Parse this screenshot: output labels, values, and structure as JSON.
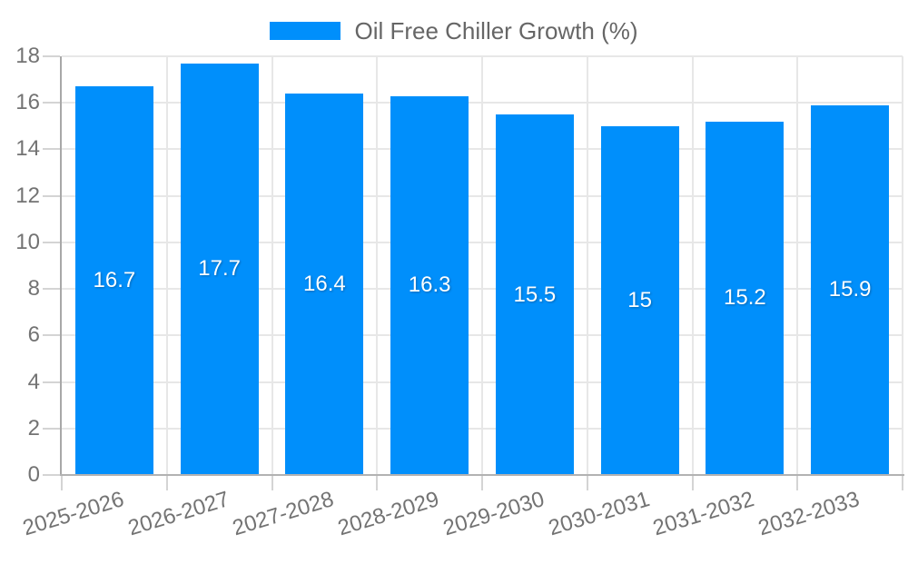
{
  "legend": {
    "label": "Oil Free Chiller Growth (%)"
  },
  "chart_data": {
    "type": "bar",
    "title": "Oil Free Chiller Growth (%)",
    "categories": [
      "2025-2026",
      "2026-2027",
      "2027-2028",
      "2028-2029",
      "2029-2030",
      "2030-2031",
      "2031-2032",
      "2032-2033"
    ],
    "series": [
      {
        "name": "Oil Free Chiller Growth (%)",
        "values": [
          16.7,
          17.7,
          16.4,
          16.3,
          15.5,
          15,
          15.2,
          15.9
        ]
      }
    ],
    "values": [
      16.7,
      17.7,
      16.4,
      16.3,
      15.5,
      15,
      15.2,
      15.9
    ],
    "value_labels": [
      "16.7",
      "17.7",
      "16.4",
      "16.3",
      "15.5",
      "15",
      "15.2",
      "15.9"
    ],
    "xlabel": "",
    "ylabel": "",
    "ylim": [
      0,
      18
    ],
    "yticks": [
      0,
      2,
      4,
      6,
      8,
      10,
      12,
      14,
      16,
      18
    ],
    "grid": true,
    "legend_position": "top",
    "x_label_rotation_deg": -17,
    "colors": {
      "bar": "#008FFB",
      "value_label": "#ffffff",
      "axis_text": "#737373",
      "legend_text": "#666666",
      "grid_line": "#e7e7e7",
      "axis_line": "#a8a8a8",
      "tick_mark": "#d4d4d4",
      "background": "#ffffff"
    }
  }
}
